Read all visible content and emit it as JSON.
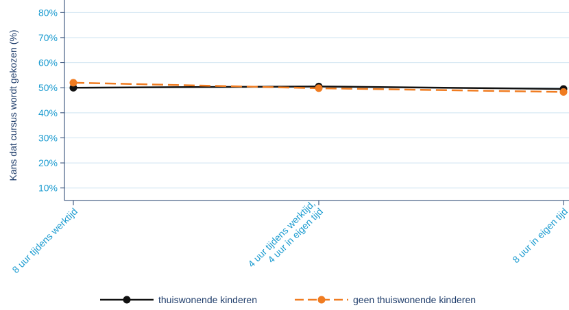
{
  "chart_data": {
    "type": "line",
    "categories": [
      "8 uur tijdens werktijd",
      "4 uur tijdens werktijd,\n4 uur in eigen tijd",
      "8 uur in eigen tijd"
    ],
    "series": [
      {
        "name": "thuiswonende kinderen",
        "values": [
          50,
          50.5,
          49.5
        ],
        "color": "#111111",
        "dash": "solid"
      },
      {
        "name": "geen thuiswonende kinderen",
        "values": [
          52,
          49.8,
          48.3
        ],
        "color": "#f07c21",
        "dash": "dashed"
      }
    ],
    "title": "",
    "xlabel": "",
    "ylabel": "Kans dat cursus wordt gekozen (%)",
    "ylim": [
      5,
      85
    ],
    "yticks": [
      10,
      20,
      30,
      40,
      50,
      60,
      70,
      80
    ],
    "ytick_labels": [
      "10%",
      "20%",
      "30%",
      "40%",
      "50%",
      "60%",
      "70%",
      "80%"
    ],
    "grid": true,
    "legend_position": "bottom"
  },
  "colors": {
    "tick": "#1a9bd0",
    "axis_title": "#1f3d6b",
    "grid": "#cde3f0",
    "axis": "#1f3d6b"
  }
}
